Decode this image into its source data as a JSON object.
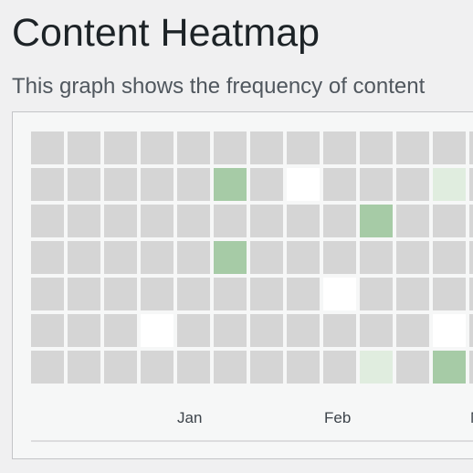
{
  "page": {
    "title": "Content Heatmap",
    "description": "This graph shows the frequency of content"
  },
  "heatmap": {
    "months": [
      "Jan",
      "Feb",
      "M"
    ],
    "legend_levels": {
      "none": "white",
      "default": "gray",
      "low": "light-green",
      "high": "green"
    },
    "colors": {
      "default": "#d5d5d5",
      "none": "#ffffff",
      "low": "#e0eddf",
      "high": "#a6cba6"
    },
    "rows": [
      [
        "default",
        "default",
        "default",
        "default",
        "default",
        "default",
        "default",
        "default",
        "default",
        "default",
        "default",
        "default",
        "default"
      ],
      [
        "default",
        "default",
        "default",
        "default",
        "default",
        "high",
        "default",
        "none",
        "default",
        "default",
        "default",
        "low",
        "default"
      ],
      [
        "default",
        "default",
        "default",
        "default",
        "default",
        "default",
        "default",
        "default",
        "default",
        "high",
        "default",
        "default",
        "default"
      ],
      [
        "default",
        "default",
        "default",
        "default",
        "default",
        "high",
        "default",
        "default",
        "default",
        "default",
        "default",
        "default",
        "default"
      ],
      [
        "default",
        "default",
        "default",
        "default",
        "default",
        "default",
        "default",
        "default",
        "none",
        "default",
        "default",
        "default",
        "default"
      ],
      [
        "default",
        "default",
        "default",
        "none",
        "default",
        "default",
        "default",
        "default",
        "default",
        "default",
        "default",
        "none",
        "default"
      ],
      [
        "default",
        "default",
        "default",
        "default",
        "default",
        "default",
        "default",
        "default",
        "default",
        "low",
        "default",
        "high",
        "default"
      ]
    ]
  }
}
